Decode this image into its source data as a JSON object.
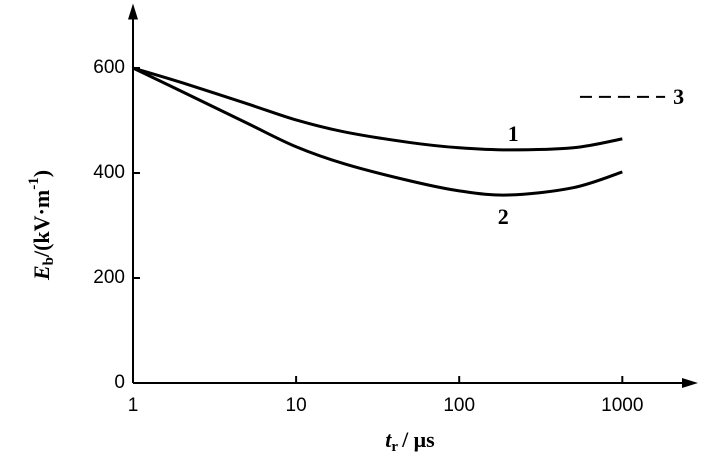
{
  "chart_data": {
    "type": "line",
    "xscale": "log",
    "x_label": {
      "main": "t",
      "sub": "r",
      "rest": "/ μs"
    },
    "y_label": {
      "main": "E",
      "sub": "b",
      "rest": "/(kV·m",
      "sup": "-1",
      "end": ")"
    },
    "xlim": [
      1,
      2600
    ],
    "xticks": [
      1,
      10,
      100,
      1000
    ],
    "ylim": [
      0,
      700
    ],
    "yticks": [
      0,
      200,
      400,
      600
    ],
    "series": [
      {
        "name": "1",
        "color": "#000000",
        "dash": false,
        "x": [
          1,
          2,
          5,
          10,
          20,
          50,
          100,
          200,
          500,
          1000
        ],
        "values": [
          600,
          572,
          532,
          501,
          478,
          458,
          448,
          444,
          448,
          465
        ]
      },
      {
        "name": "2",
        "color": "#000000",
        "dash": false,
        "x": [
          1,
          2,
          5,
          10,
          20,
          50,
          100,
          200,
          500,
          1000
        ],
        "values": [
          600,
          555,
          495,
          450,
          417,
          385,
          366,
          358,
          372,
          402
        ]
      },
      {
        "name": "3",
        "color": "#000000",
        "dash": true,
        "x": [
          550,
          1830
        ],
        "values": [
          545,
          545
        ]
      }
    ]
  }
}
